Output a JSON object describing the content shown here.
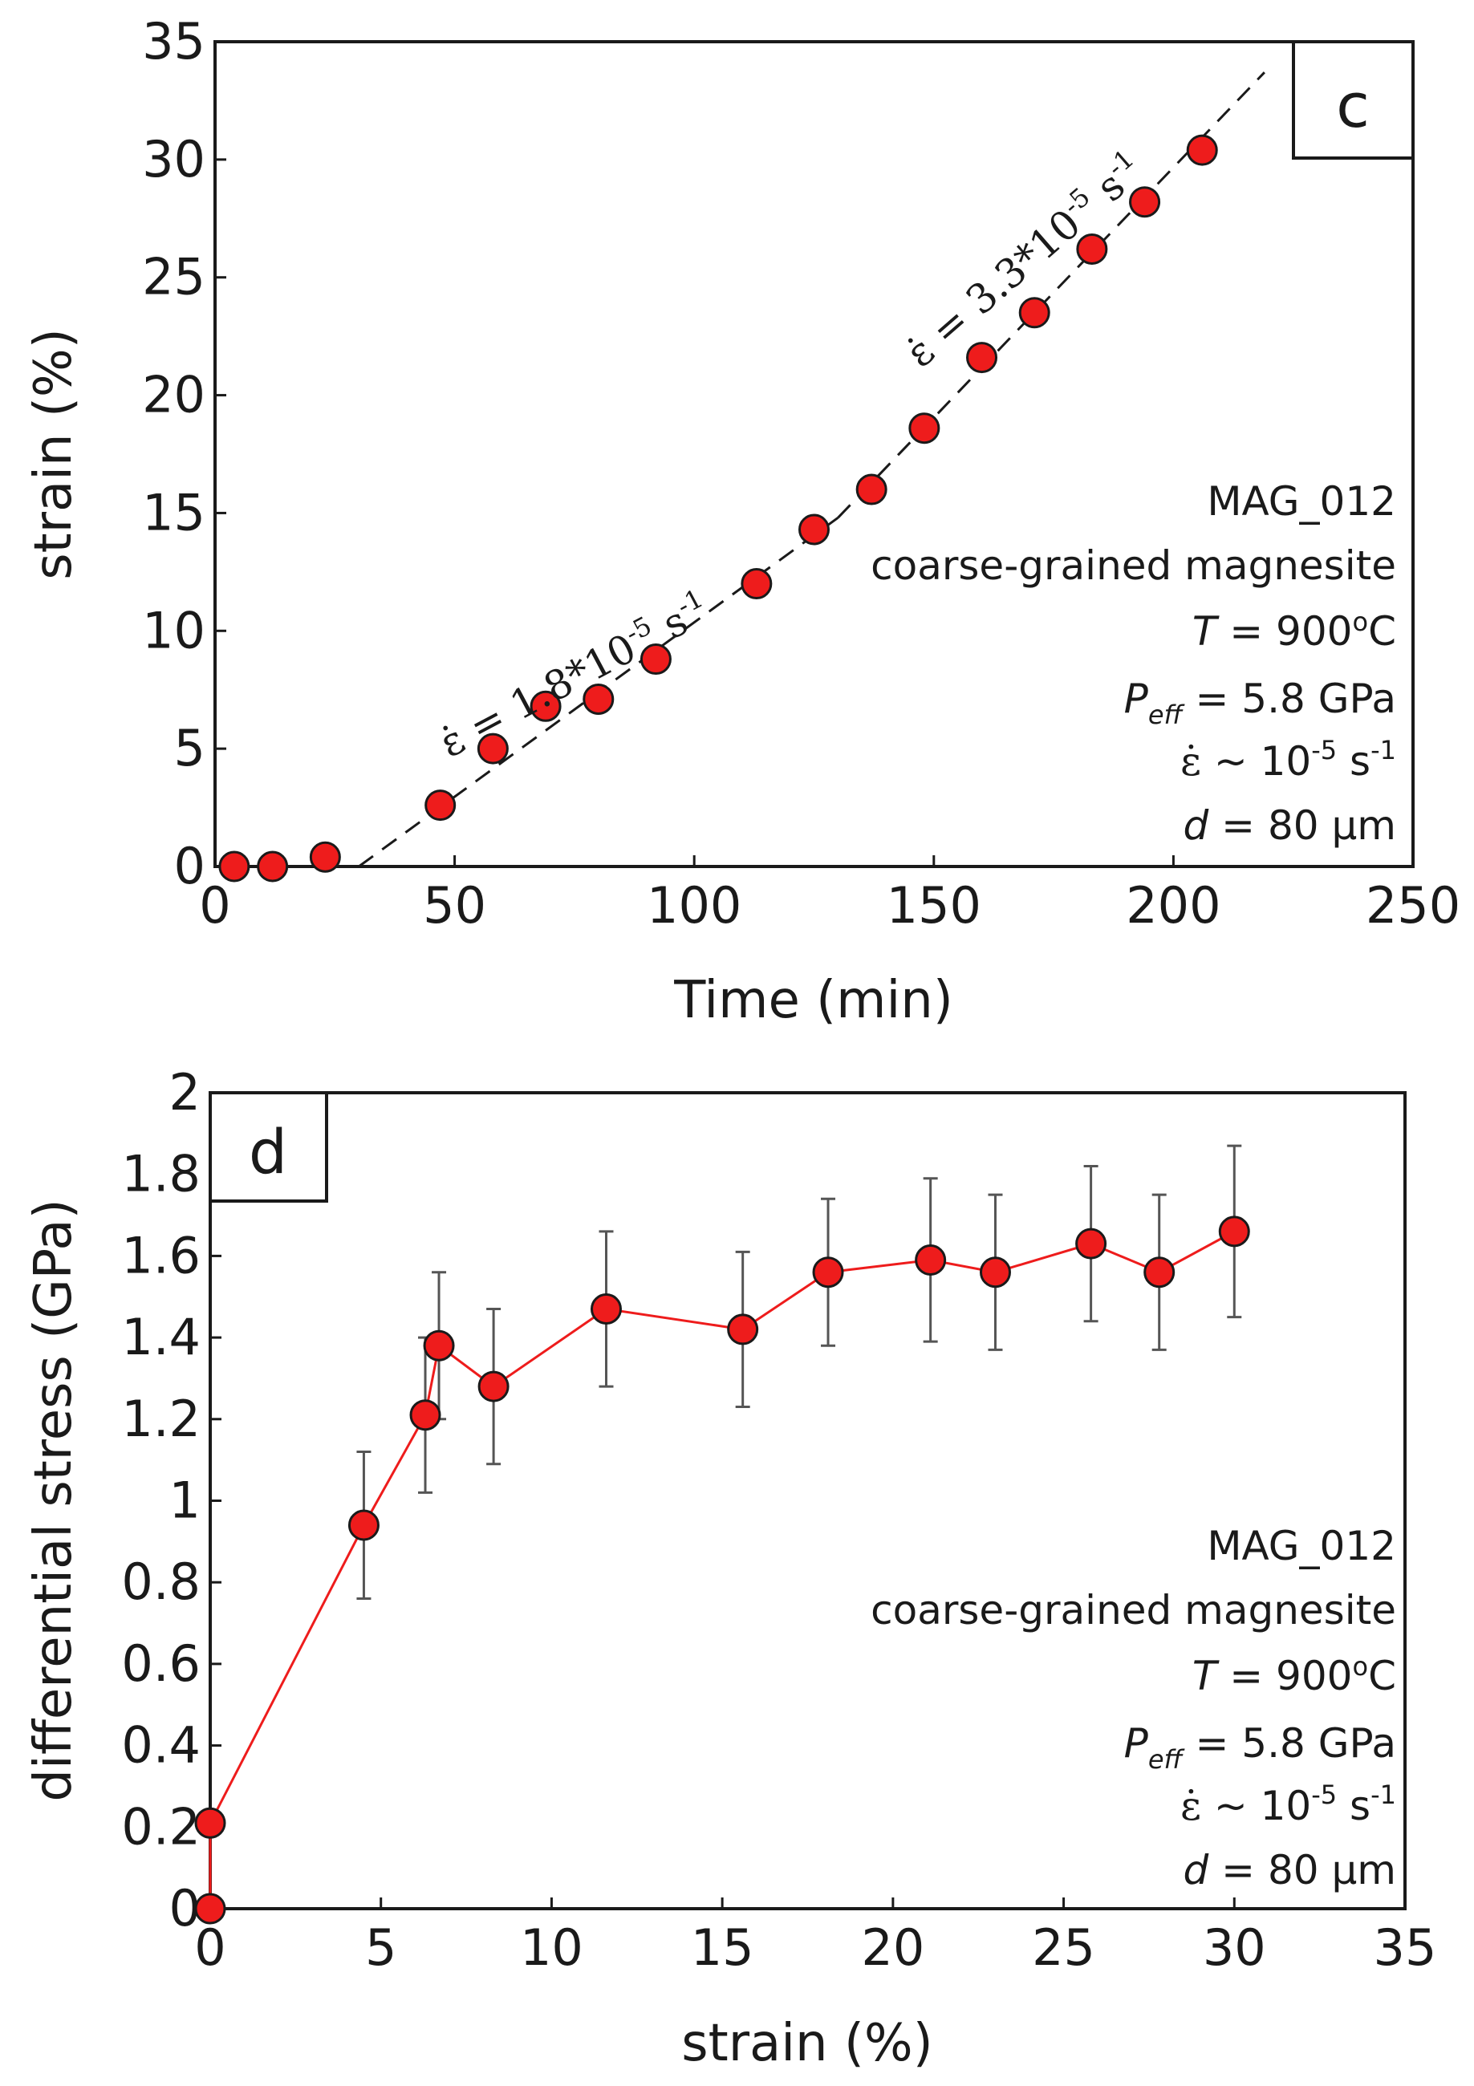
{
  "chart_data": [
    {
      "type": "scatter",
      "panel_label": "c",
      "xlabel": "Time (min)",
      "ylabel": "strain (%)",
      "xlim": [
        0,
        250
      ],
      "ylim": [
        0,
        35
      ],
      "xticks": [
        "0",
        "50",
        "100",
        "150",
        "200",
        "250"
      ],
      "yticks": [
        "0",
        "5",
        "10",
        "15",
        "20",
        "25",
        "30",
        "35"
      ],
      "series": [
        {
          "marker": "circle",
          "color": "#ee1c1c",
          "x": [
            4,
            12,
            23,
            47,
            58,
            69,
            80,
            92,
            113,
            125,
            137,
            148,
            160,
            171,
            183,
            194,
            206
          ],
          "y": [
            0.0,
            0.0,
            0.4,
            2.6,
            5.0,
            6.8,
            7.1,
            8.8,
            12.0,
            14.3,
            16.0,
            18.6,
            21.6,
            23.5,
            26.2,
            28.2,
            30.4
          ]
        }
      ],
      "fit_lines": [
        {
          "style": "dashed",
          "x": [
            30,
            130
          ],
          "y": [
            0.0,
            14.8
          ]
        },
        {
          "style": "dashed",
          "x": [
            130,
            219
          ],
          "y": [
            14.8,
            33.7
          ]
        }
      ],
      "slope_annotations": [
        {
          "symbol": "ε̇",
          "text": " = 1.8*10",
          "exp": "-5",
          "unit": " s",
          "unit_exp": "-1"
        },
        {
          "symbol": "ε̇",
          "text": " = 3.3*10",
          "exp": "-5",
          "unit": " s",
          "unit_exp": "-1"
        }
      ],
      "annotation_block": {
        "sample": "MAG_012",
        "material": "coarse-grained magnesite",
        "temperature": "T = 900°C",
        "pressure": "Peff = 5.8 GPa",
        "strain_rate": "ε̇ ~ 10-5 s-1",
        "grain_size": "d = 80 μm"
      }
    },
    {
      "type": "line",
      "panel_label": "d",
      "xlabel": "strain (%)",
      "ylabel": "differential stress (GPa)",
      "xlim": [
        0,
        35
      ],
      "ylim": [
        0,
        2
      ],
      "xticks": [
        "0",
        "5",
        "10",
        "15",
        "20",
        "25",
        "30",
        "35"
      ],
      "yticks": [
        "0",
        "0.2",
        "0.4",
        "0.6",
        "0.8",
        "1",
        "1.2",
        "1.4",
        "1.6",
        "1.8",
        "2"
      ],
      "series": [
        {
          "marker": "circle",
          "color": "#ee1c1c",
          "line_color": "#ee1c1c",
          "x": [
            0,
            0,
            4.5,
            6.3,
            6.7,
            8.3,
            11.6,
            15.6,
            18.1,
            21.1,
            23.0,
            25.8,
            27.8,
            30.0
          ],
          "y": [
            0.0,
            0.21,
            0.94,
            1.21,
            1.38,
            1.28,
            1.47,
            1.42,
            1.56,
            1.59,
            1.56,
            1.63,
            1.56,
            1.66
          ],
          "error": [
            0,
            0,
            0.18,
            0.19,
            0.18,
            0.19,
            0.19,
            0.19,
            0.18,
            0.2,
            0.19,
            0.19,
            0.19,
            0.21
          ]
        }
      ],
      "annotation_block": {
        "sample": "MAG_012",
        "material": "coarse-grained magnesite",
        "temperature": "T = 900°C",
        "pressure": "Peff = 5.8 GPa",
        "strain_rate": "ε̇ ~ 10-5 s-1",
        "grain_size": "d = 80 μm"
      }
    }
  ],
  "colors": {
    "marker_fill": "#ee1c1c",
    "marker_stroke": "#1a1a1a",
    "connector_line": "#ee1c1c",
    "error_bar": "#555555",
    "axis": "#1a1a1a"
  }
}
